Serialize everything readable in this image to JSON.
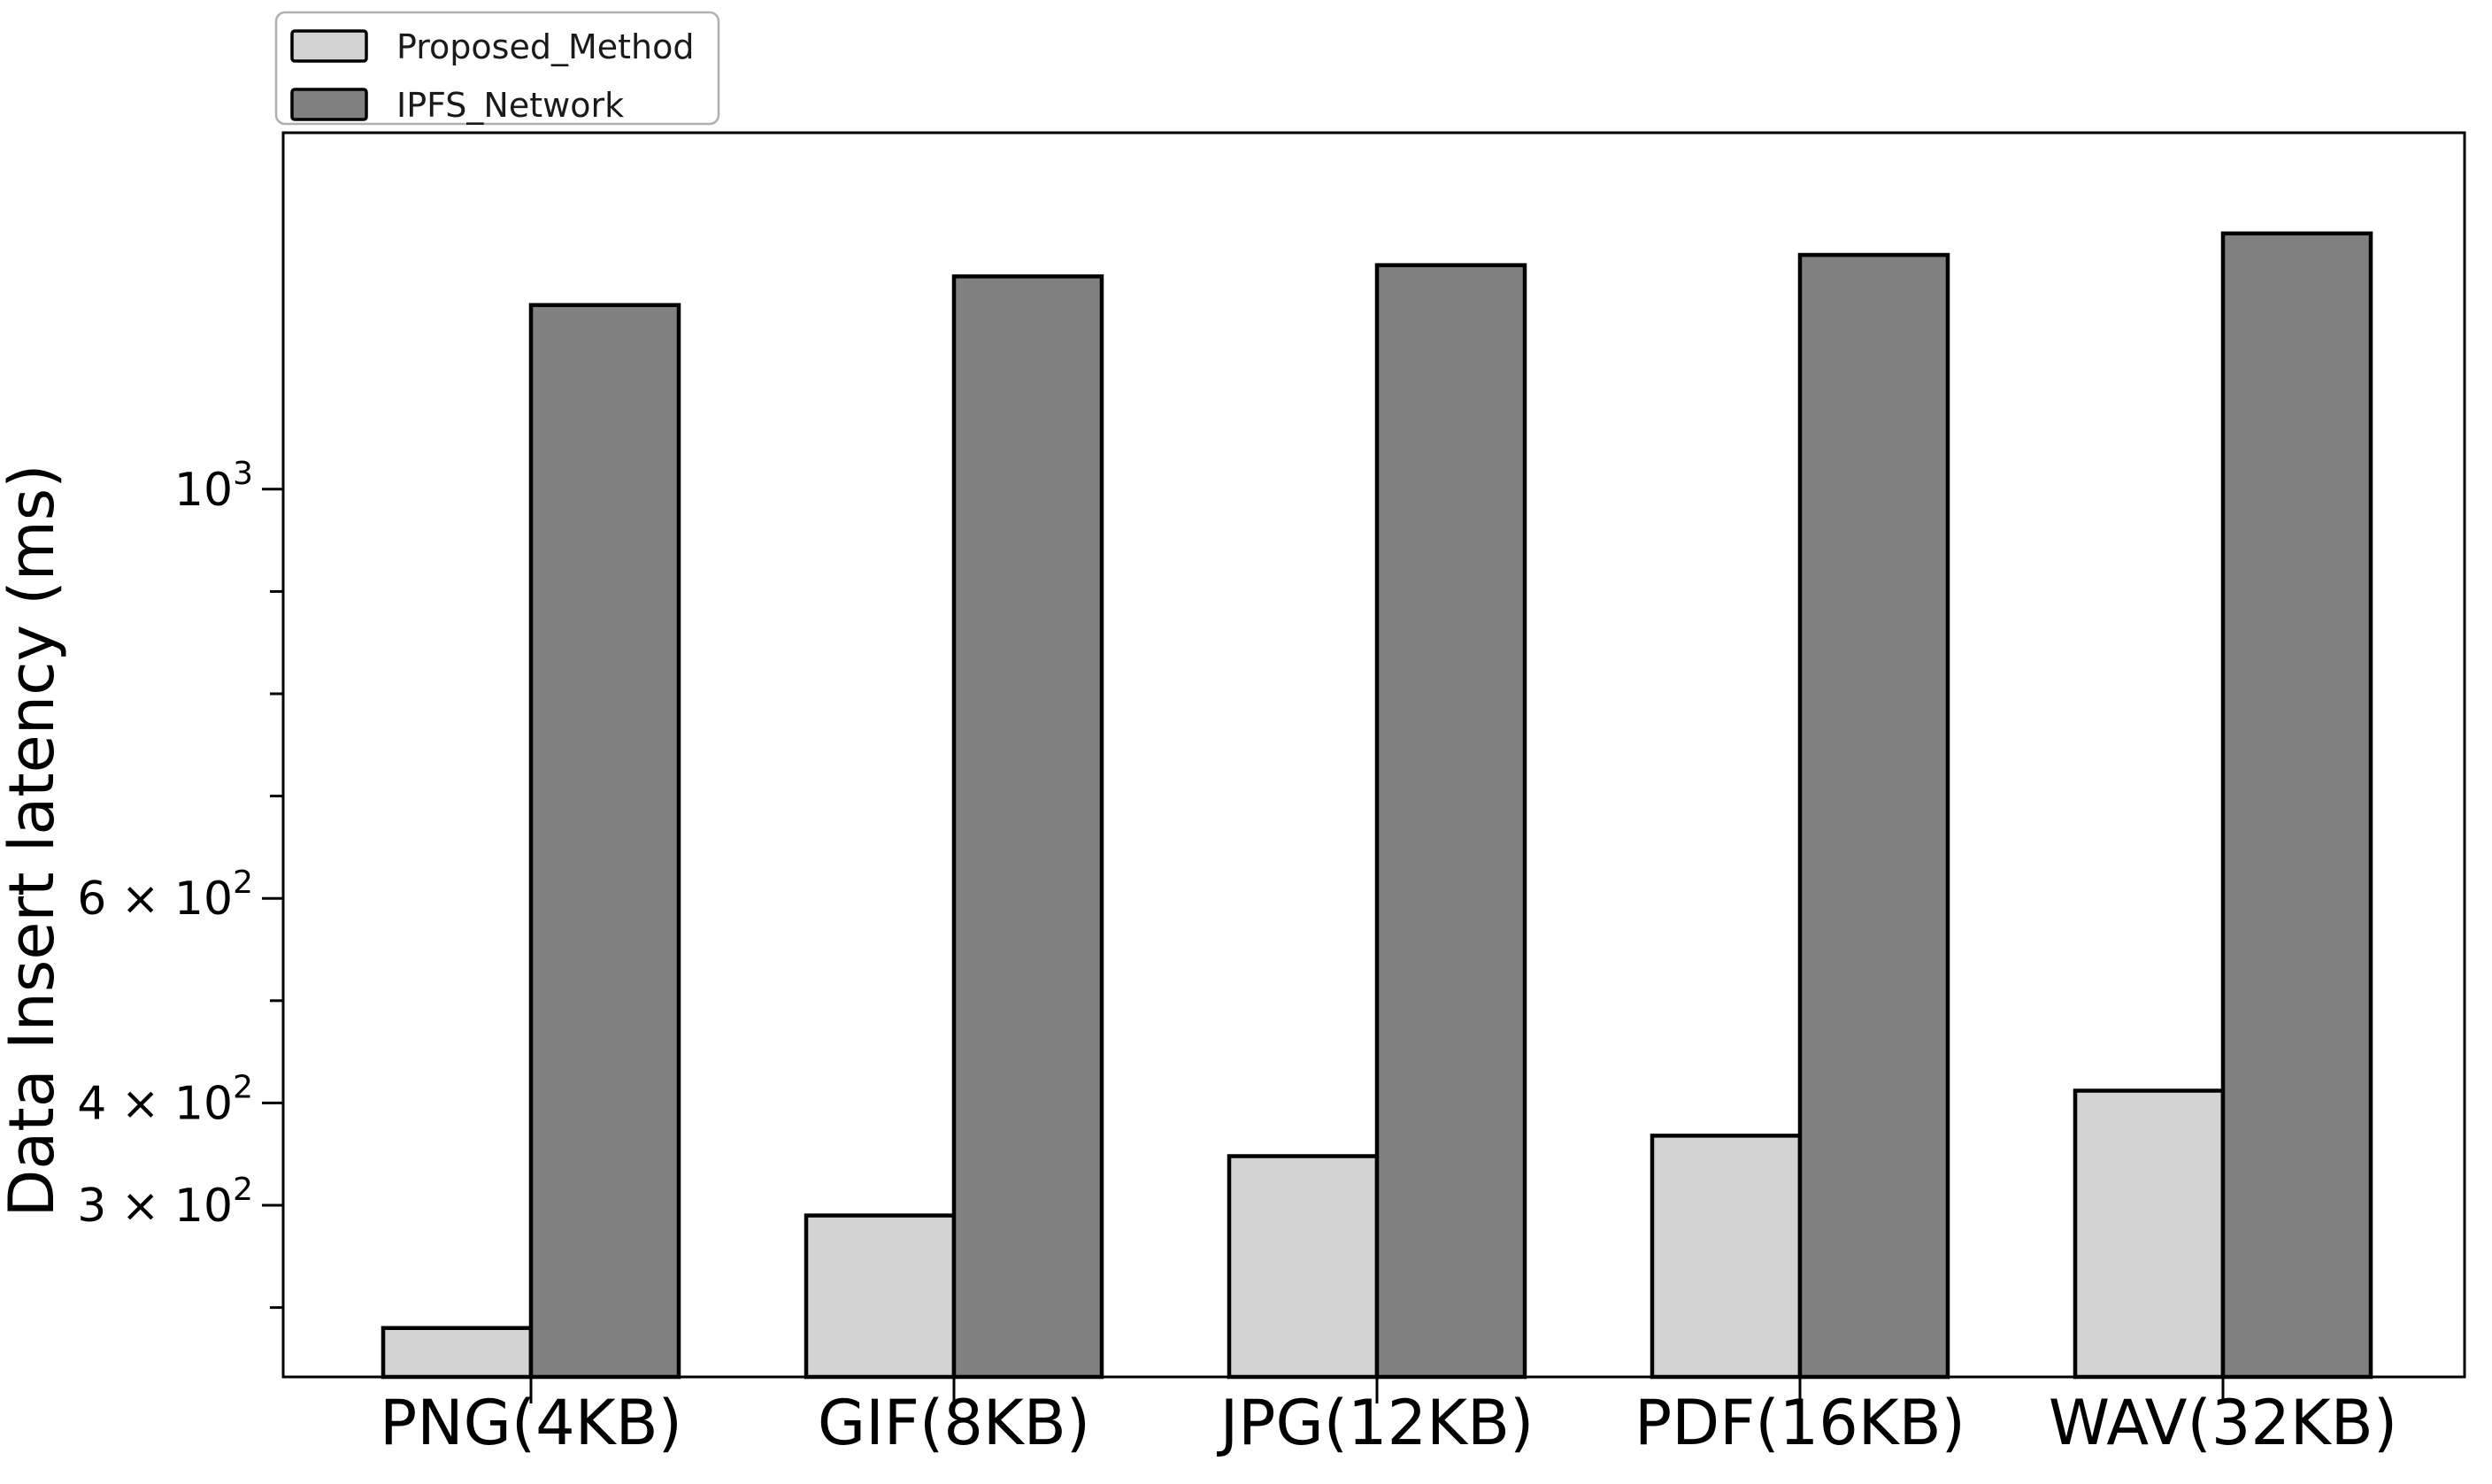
{
  "chart_data": {
    "type": "bar",
    "title": "",
    "xlabel": "",
    "ylabel": "Data Insert latency (ms)",
    "y_unit": "ms",
    "categories": [
      "PNG(4KB)",
      "GIF(8KB)",
      "JPG(12KB)",
      "PDF(16KB)",
      "WAV(32KB)"
    ],
    "series": [
      {
        "name": "Proposed_Method",
        "color": "#d3d3d3",
        "edge_color": "#000000",
        "values": [
          180,
          290,
          348,
          368,
          412
        ]
      },
      {
        "name": "IPFS_Network",
        "color": "#808080",
        "edge_color": "#000000",
        "values": [
          1180,
          1208,
          1219,
          1229,
          1250
        ]
      }
    ],
    "y_ticks": [
      {
        "value": 1000,
        "label": [
          "10",
          "3"
        ],
        "major": true
      },
      {
        "value": 900
      },
      {
        "value": 800
      },
      {
        "value": 700
      },
      {
        "value": 600,
        "label": [
          "6 × 10",
          "2"
        ]
      },
      {
        "value": 500
      },
      {
        "value": 400,
        "label": [
          "4 × 10",
          "2"
        ]
      },
      {
        "value": 300,
        "label": [
          "3 × 10",
          "2"
        ]
      },
      {
        "value": 200
      }
    ],
    "y_axis_style": "log-style tick labels, linear pixel spacing",
    "grid": false,
    "legend": {
      "position": "upper-left",
      "entries": [
        "Proposed_Method",
        "IPFS_Network"
      ]
    },
    "background": "#ffffff",
    "axis_color": "#000000"
  }
}
